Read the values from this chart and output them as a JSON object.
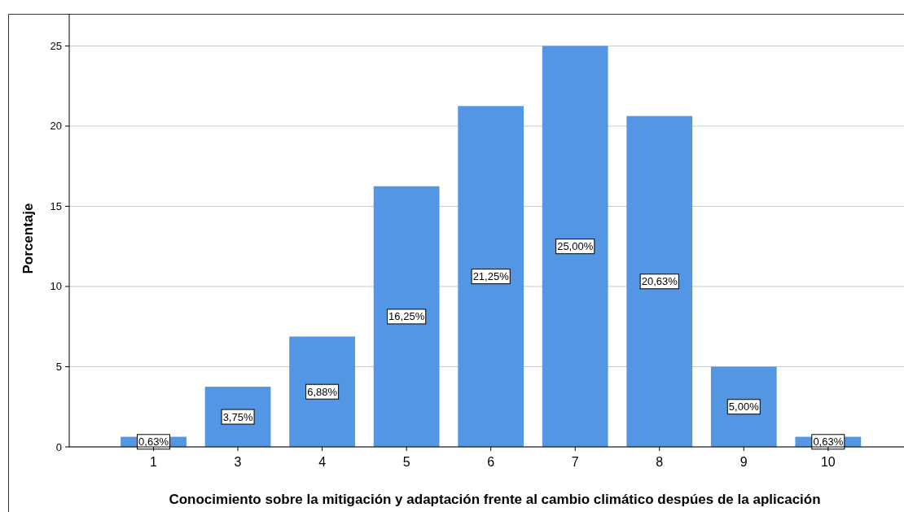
{
  "chart_data": {
    "type": "bar",
    "xlabel": "Conocimiento sobre la mitigación y adaptación frente al cambio climático despúes de la aplicación",
    "ylabel": "Porcentaje",
    "categories": [
      "1",
      "3",
      "4",
      "5",
      "6",
      "7",
      "8",
      "9",
      "10"
    ],
    "values": [
      0.63,
      3.75,
      6.88,
      16.25,
      21.25,
      25,
      20.63,
      5,
      0.63
    ],
    "value_labels": [
      "0,63%",
      "3,75%",
      "6,88%",
      "16,25%",
      "21,25%",
      "25,00%",
      "20,63%",
      "5,00%",
      "0,63%"
    ],
    "color": "#5296e4",
    "ylim": [
      0,
      27
    ],
    "yticks": [
      0,
      5,
      10,
      15,
      20,
      25
    ],
    "grid": "y"
  }
}
